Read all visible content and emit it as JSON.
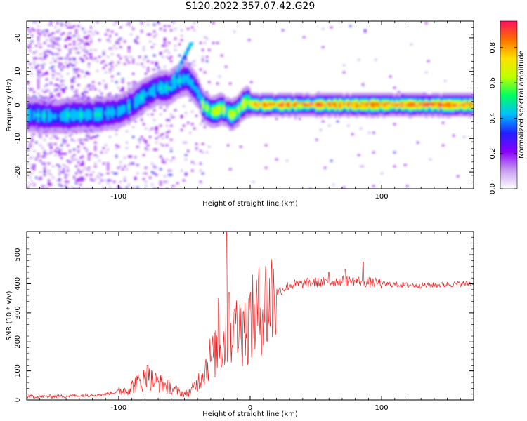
{
  "figure": {
    "title": "S120.2022.357.07.42.G29"
  },
  "chart_data": [
    {
      "type": "heatmap",
      "xlabel": "Height of straight line (km)",
      "ylabel": "Frequency (Hz)",
      "xlim": [
        -170,
        170
      ],
      "ylim": [
        -25,
        25
      ],
      "x_ticks": [
        -100,
        0,
        100
      ],
      "x_tick_labels": [
        "-100",
        "",
        "100"
      ],
      "y_ticks": [
        -20,
        -10,
        0,
        10,
        20
      ],
      "colorbar": {
        "label": "Normalized spectral amplitude",
        "range": [
          0,
          0.95
        ],
        "ticks": [
          0.0,
          0.2,
          0.4,
          0.6,
          0.8
        ],
        "tick_labels": [
          "0.0",
          "0.2",
          "0.4",
          "0.6",
          "0.8"
        ],
        "colormap": [
          "#ffffff",
          "#c79bf0",
          "#8a00ff",
          "#2020ff",
          "#00c0ff",
          "#00ff60",
          "#c0ff00",
          "#ffe000",
          "#ff7000",
          "#ff1060"
        ]
      },
      "ridge": {
        "x": [
          -165,
          -150,
          -135,
          -120,
          -110,
          -100,
          -90,
          -80,
          -70,
          -62,
          -55,
          -48,
          -44,
          -40,
          -36,
          -30,
          -26,
          -22,
          -18,
          -14,
          -10,
          -6,
          -2,
          2,
          10,
          30,
          60,
          90,
          120,
          150,
          170
        ],
        "freq": [
          -3,
          -3.5,
          -3,
          -3,
          -2.5,
          -2,
          0,
          3,
          5,
          5,
          7,
          8,
          6,
          4,
          0,
          -2,
          -2,
          -1,
          -2,
          -3,
          -2,
          0,
          1,
          0,
          0,
          0,
          0,
          0,
          0,
          0,
          0
        ]
      },
      "grid": false
    },
    {
      "type": "line",
      "xlabel": "Height of straight line (km)",
      "ylabel": "SNR (10 * v/v)",
      "xlim": [
        -170,
        170
      ],
      "ylim": [
        0,
        580
      ],
      "x_ticks": [
        -100,
        0,
        100
      ],
      "y_ticks": [
        0,
        100,
        200,
        300,
        400,
        500
      ],
      "series": [
        {
          "color": "#ee2222",
          "envelope": {
            "x": [
              -170,
              -150,
              -130,
              -110,
              -95,
              -85,
              -78,
              -70,
              -60,
              -50,
              -45,
              -40,
              -35,
              -30,
              -25,
              -20,
              -15,
              -10,
              -5,
              0,
              10,
              20,
              30,
              40,
              50,
              60,
              70,
              80,
              90,
              100,
              120,
              140,
              160,
              170
            ],
            "y": [
              12,
              12,
              15,
              20,
              35,
              60,
              75,
              60,
              40,
              20,
              30,
              60,
              100,
              150,
              160,
              200,
              220,
              240,
              250,
              270,
              320,
              370,
              395,
              400,
              405,
              405,
              410,
              410,
              405,
              400,
              395,
              395,
              400,
              400
            ]
          },
          "spikes": [
            {
              "x": -78,
              "y": 120
            },
            {
              "x": -24,
              "y": 350
            },
            {
              "x": -18,
              "y": 580
            },
            {
              "x": -16,
              "y": 370
            },
            {
              "x": -12,
              "y": 310
            },
            {
              "x": -5,
              "y": 305
            },
            {
              "x": 60,
              "y": 440
            },
            {
              "x": 72,
              "y": 450
            },
            {
              "x": 86,
              "y": 475
            }
          ]
        }
      ],
      "grid": false
    }
  ]
}
